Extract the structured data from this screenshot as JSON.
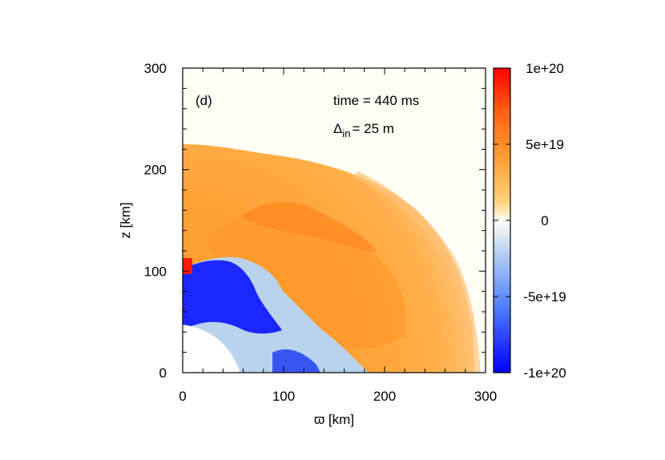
{
  "chart_data": {
    "type": "heatmap",
    "panel_label": "(d)",
    "annotations": {
      "time": "time = 440 ms",
      "delta_symbol": "Δ",
      "delta_sub": "in",
      "delta_value": "= 25 m"
    },
    "xlabel": "ϖ [km]",
    "ylabel": "z [km]",
    "xlim": [
      0,
      300
    ],
    "ylim": [
      0,
      300
    ],
    "xticks": [
      0,
      100,
      200,
      300
    ],
    "yticks": [
      0,
      100,
      200,
      300
    ],
    "colorbar": {
      "range": [
        -1e+20,
        1e+20
      ],
      "ticks": [
        -1e+20,
        -5e+19,
        0,
        5e+19,
        1e+20
      ],
      "tick_labels": [
        "-1e+20",
        "-5e+19",
        "0",
        "5e+19",
        "1e+20"
      ],
      "colormap": [
        "#0000ff",
        "#4d7fff",
        "#c8dcf0",
        "#fffff6",
        "#ffd27a",
        "#ff9a2e",
        "#ff5f14",
        "#ff0000"
      ]
    },
    "regions": {
      "shock_outer_radius_km": 285,
      "inner_boundary_radius_km": 55,
      "polar_extent_km": 223,
      "positive_region_typical_value": 4e+19,
      "negative_region_typical_value": -8e+19,
      "background_value": 0
    }
  }
}
